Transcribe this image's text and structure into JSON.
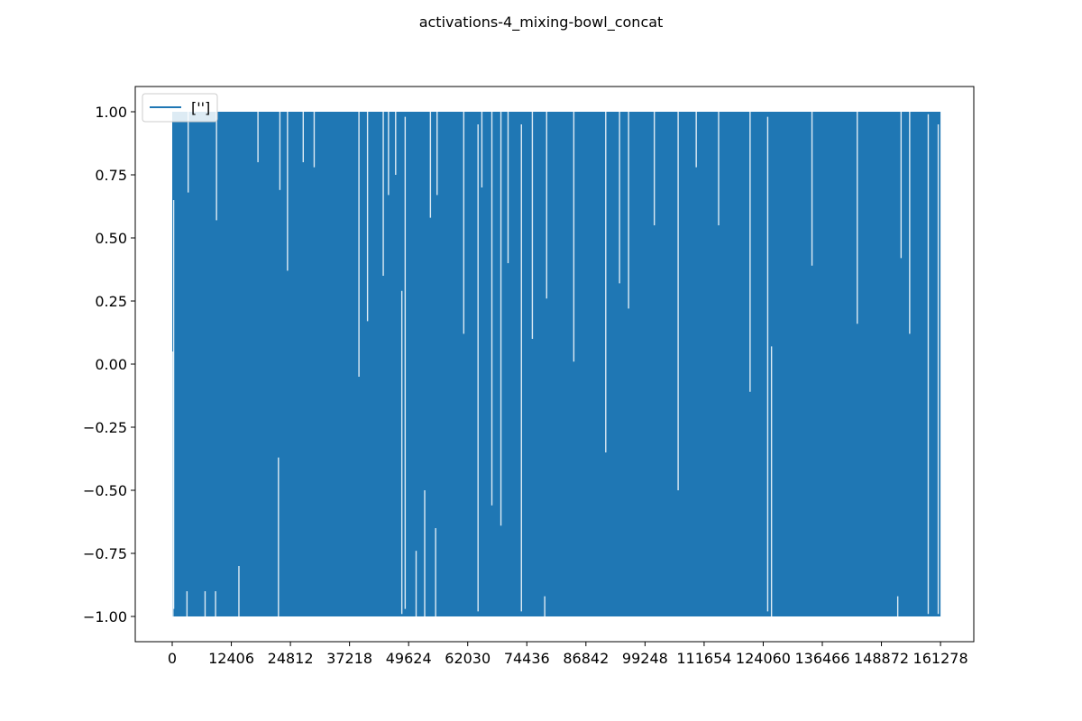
{
  "chart_data": {
    "type": "line",
    "title": "activations-4_mixing-bowl_concat",
    "xlabel": "",
    "ylabel": "",
    "xlim": [
      -7761,
      168264
    ],
    "ylim": [
      -1.1,
      1.1
    ],
    "x_ticks": [
      0,
      12406,
      24812,
      37218,
      49624,
      62030,
      74436,
      86842,
      99248,
      111654,
      124060,
      136466,
      148872,
      161278
    ],
    "x_tick_labels": [
      "0",
      "12406",
      "24812",
      "37218",
      "49624",
      "62030",
      "74436",
      "86842",
      "99248",
      "111654",
      "124060",
      "136466",
      "148872",
      "161278"
    ],
    "y_ticks": [
      -1.0,
      -0.75,
      -0.5,
      -0.25,
      0.0,
      0.25,
      0.5,
      0.75,
      1.0
    ],
    "y_tick_labels": [
      "−1.00",
      "−0.75",
      "−0.50",
      "−0.25",
      "0.00",
      "0.25",
      "0.50",
      "0.75",
      "1.00"
    ],
    "x_range": [
      0,
      161278
    ],
    "y_range": [
      -1.0,
      1.0
    ],
    "legend": {
      "position": "upper-left",
      "entries": [
        "['']"
      ]
    },
    "grid": false,
    "series": [
      {
        "name": "['']",
        "color": "#1f77b4",
        "dense_band": {
          "x": [
            0,
            161278
          ],
          "y": [
            -1.0,
            1.0
          ]
        },
        "gaps": [
          {
            "x": 150,
            "y": [
              -1.0,
              0.05
            ]
          },
          {
            "x": 300,
            "y": [
              -0.97,
              0.65
            ]
          },
          {
            "x": 3100,
            "y": [
              -1.0,
              -0.9
            ]
          },
          {
            "x": 3350,
            "y": [
              0.68,
              1.0
            ]
          },
          {
            "x": 6900,
            "y": [
              -1.0,
              -0.9
            ]
          },
          {
            "x": 9100,
            "y": [
              -1.0,
              -0.9
            ]
          },
          {
            "x": 9300,
            "y": [
              0.57,
              1.0
            ]
          },
          {
            "x": 14000,
            "y": [
              -1.0,
              -0.8
            ]
          },
          {
            "x": 18000,
            "y": [
              0.8,
              1.0
            ]
          },
          {
            "x": 22300,
            "y": [
              -1.0,
              -0.37
            ]
          },
          {
            "x": 22600,
            "y": [
              0.69,
              1.0
            ]
          },
          {
            "x": 24200,
            "y": [
              0.37,
              1.0
            ]
          },
          {
            "x": 27500,
            "y": [
              0.8,
              1.0
            ]
          },
          {
            "x": 29800,
            "y": [
              0.78,
              1.0
            ]
          },
          {
            "x": 39200,
            "y": [
              -0.05,
              1.0
            ]
          },
          {
            "x": 41000,
            "y": [
              0.17,
              1.0
            ]
          },
          {
            "x": 44300,
            "y": [
              0.35,
              1.0
            ]
          },
          {
            "x": 45400,
            "y": [
              0.67,
              1.0
            ]
          },
          {
            "x": 46900,
            "y": [
              0.75,
              1.0
            ]
          },
          {
            "x": 48200,
            "y": [
              -0.99,
              0.29
            ]
          },
          {
            "x": 48900,
            "y": [
              -0.97,
              0.98
            ]
          },
          {
            "x": 51200,
            "y": [
              -1.0,
              -0.74
            ]
          },
          {
            "x": 53000,
            "y": [
              -1.0,
              -0.5
            ]
          },
          {
            "x": 54200,
            "y": [
              0.58,
              1.0
            ]
          },
          {
            "x": 55300,
            "y": [
              -1.0,
              -0.65
            ]
          },
          {
            "x": 55600,
            "y": [
              0.67,
              1.0
            ]
          },
          {
            "x": 61200,
            "y": [
              0.12,
              1.0
            ]
          },
          {
            "x": 64200,
            "y": [
              -0.98,
              0.95
            ]
          },
          {
            "x": 65000,
            "y": [
              0.7,
              1.0
            ]
          },
          {
            "x": 67100,
            "y": [
              -0.56,
              1.0
            ]
          },
          {
            "x": 69000,
            "y": [
              -0.64,
              1.0
            ]
          },
          {
            "x": 70500,
            "y": [
              0.4,
              1.0
            ]
          },
          {
            "x": 73300,
            "y": [
              -0.98,
              0.95
            ]
          },
          {
            "x": 75600,
            "y": [
              0.1,
              1.0
            ]
          },
          {
            "x": 78200,
            "y": [
              -1.0,
              -0.92
            ]
          },
          {
            "x": 78600,
            "y": [
              0.26,
              1.0
            ]
          },
          {
            "x": 84300,
            "y": [
              0.01,
              1.0
            ]
          },
          {
            "x": 91000,
            "y": [
              -0.35,
              1.0
            ]
          },
          {
            "x": 93900,
            "y": [
              0.32,
              1.0
            ]
          },
          {
            "x": 95800,
            "y": [
              0.22,
              1.0
            ]
          },
          {
            "x": 101200,
            "y": [
              0.55,
              1.0
            ]
          },
          {
            "x": 106200,
            "y": [
              -0.5,
              1.0
            ]
          },
          {
            "x": 110000,
            "y": [
              0.78,
              1.0
            ]
          },
          {
            "x": 114700,
            "y": [
              0.55,
              1.0
            ]
          },
          {
            "x": 121300,
            "y": [
              -0.11,
              1.0
            ]
          },
          {
            "x": 125000,
            "y": [
              -0.98,
              0.98
            ]
          },
          {
            "x": 125800,
            "y": [
              -1.0,
              0.07
            ]
          },
          {
            "x": 134300,
            "y": [
              0.39,
              1.0
            ]
          },
          {
            "x": 143800,
            "y": [
              0.16,
              1.0
            ]
          },
          {
            "x": 152300,
            "y": [
              -1.0,
              -0.92
            ]
          },
          {
            "x": 153000,
            "y": [
              0.42,
              1.0
            ]
          },
          {
            "x": 154800,
            "y": [
              0.12,
              1.0
            ]
          },
          {
            "x": 158700,
            "y": [
              -0.99,
              0.99
            ]
          },
          {
            "x": 160800,
            "y": [
              -0.99,
              0.95
            ]
          }
        ]
      }
    ]
  }
}
